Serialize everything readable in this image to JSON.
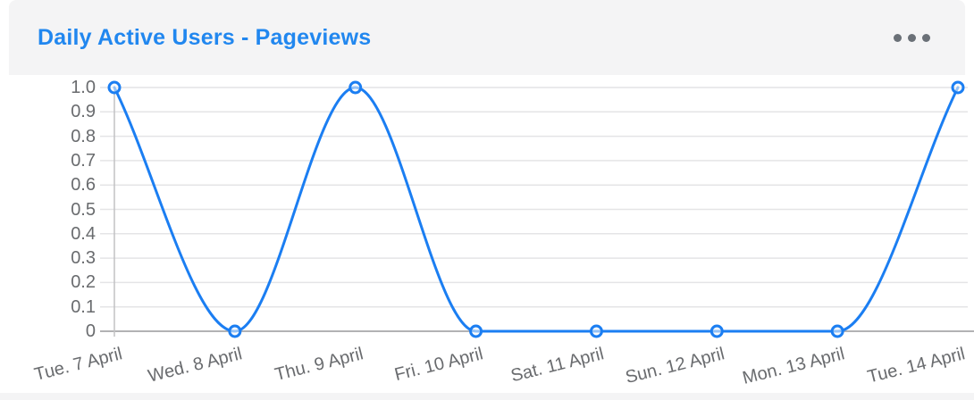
{
  "header": {
    "title": "Daily Active Users - Pageviews",
    "menu_label": "more-options"
  },
  "colors": {
    "title": "#2187ef",
    "line": "#1b7ef2",
    "grid": "#e4e4e6",
    "zero_line": "#b2b2b4",
    "axis_line": "#c2c2c4",
    "axis_text": "#696b6e",
    "header_bg": "#f4f4f5",
    "menu_dots": "#6a7077",
    "marker_fill": "rgba(245,247,250,0.55)"
  },
  "chart_data": {
    "type": "line",
    "title": "Daily Active Users - Pageviews",
    "categories": [
      "Tue. 7 April",
      "Wed. 8 April",
      "Thu. 9 April",
      "Fri. 10 April",
      "Sat. 11 April",
      "Sun. 12 April",
      "Mon. 13 April",
      "Tue. 14 April"
    ],
    "series": [
      {
        "name": "Pageviews",
        "values": [
          1,
          0,
          1,
          0,
          0,
          0,
          0,
          1
        ]
      }
    ],
    "yticks": [
      "1.0",
      "0.9",
      "0.8",
      "0.7",
      "0.6",
      "0.5",
      "0.4",
      "0.3",
      "0.2",
      "0.1",
      "0"
    ],
    "ylim": [
      0,
      1
    ],
    "xlabel": "",
    "ylabel": "",
    "grid": "horizontal-only",
    "legend": "none",
    "line_style": "smooth-monotone",
    "marker": "open-circle"
  }
}
